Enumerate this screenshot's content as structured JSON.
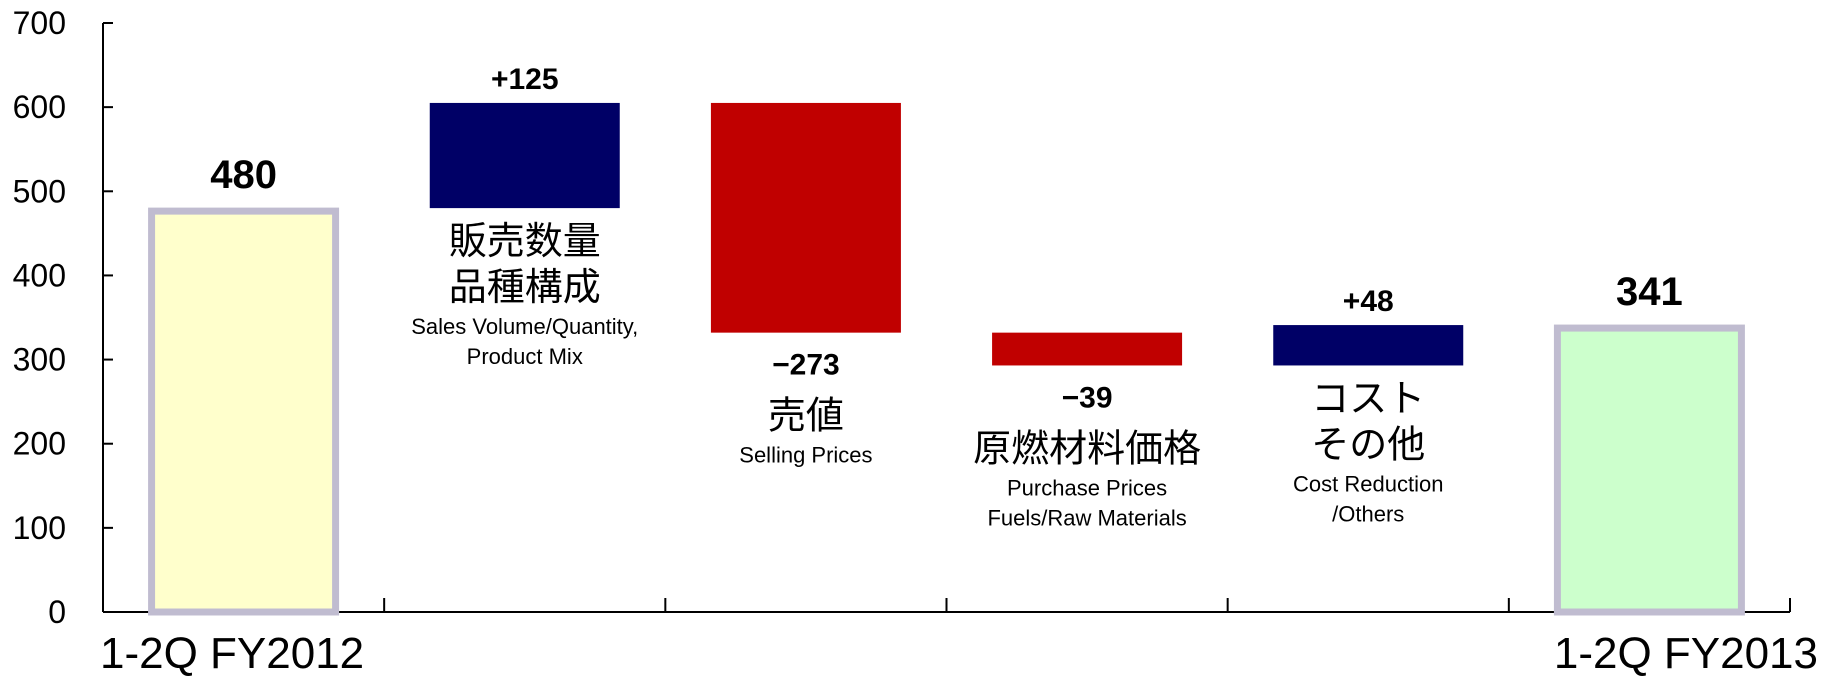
{
  "chart_data": {
    "type": "bar",
    "subtype": "waterfall",
    "ylim": [
      0,
      700
    ],
    "yticks": [
      0,
      100,
      200,
      300,
      400,
      500,
      600,
      700
    ],
    "grid": false,
    "legend": "none",
    "x_labels": [
      "1-2Q FY2012",
      "1-2Q FY2013"
    ],
    "colors": {
      "total_fy2012_fill": "#FFFFCC",
      "total_fy2013_fill": "#CCFFCC",
      "total_border": "#C0BCD0",
      "increase": "#000066",
      "decrease": "#C00000"
    },
    "bars": [
      {
        "kind": "total",
        "start": 0,
        "end": 480,
        "value_label": "480",
        "labels_jp": [],
        "labels_en": []
      },
      {
        "kind": "increase",
        "start": 480,
        "end": 605,
        "value_label": "+125",
        "labels_jp": [
          "販売数量",
          "品種構成"
        ],
        "labels_en": [
          "Sales Volume/Quantity,",
          "Product Mix"
        ]
      },
      {
        "kind": "decrease",
        "start": 605,
        "end": 332,
        "value_label": "−273",
        "labels_jp": [
          "売値"
        ],
        "labels_en": [
          "Selling Prices"
        ]
      },
      {
        "kind": "decrease",
        "start": 332,
        "end": 293,
        "value_label": "−39",
        "labels_jp": [
          "原燃材料価格"
        ],
        "labels_en": [
          "Purchase Prices",
          "Fuels/Raw Materials"
        ]
      },
      {
        "kind": "increase",
        "start": 293,
        "end": 341,
        "value_label": "+48",
        "labels_jp": [
          "コスト",
          "その他"
        ],
        "labels_en": [
          "Cost Reduction",
          "/Others"
        ]
      },
      {
        "kind": "total",
        "start": 0,
        "end": 341,
        "value_label": "341",
        "labels_jp": [],
        "labels_en": []
      }
    ]
  }
}
